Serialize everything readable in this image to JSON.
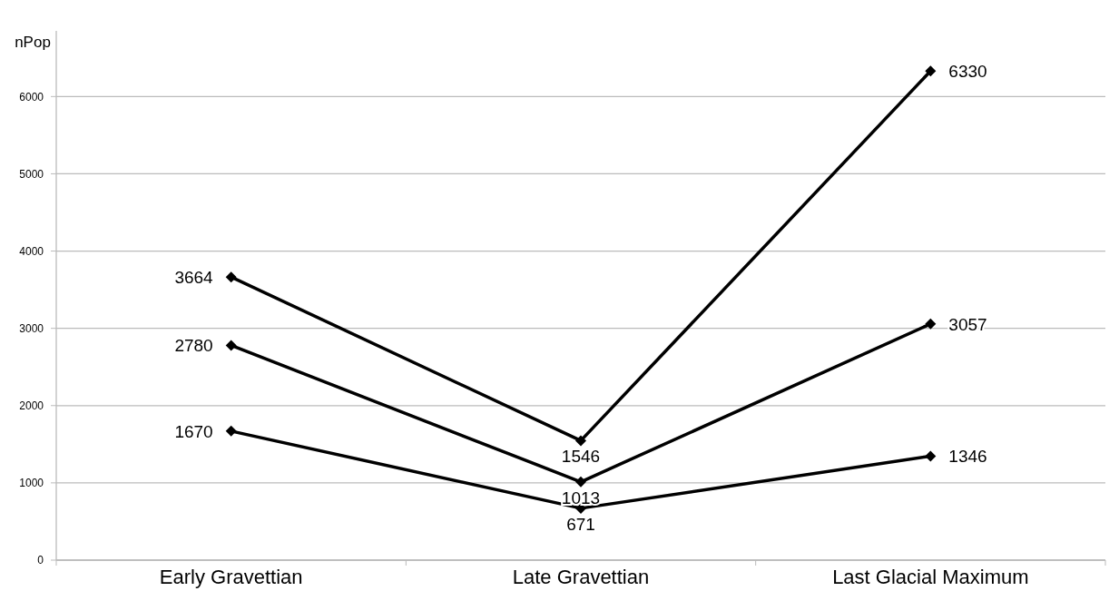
{
  "chart_data": {
    "type": "line",
    "ylabel": "nPop",
    "categories": [
      "Early Gravettian",
      "Late Gravettian",
      "Last Glacial Maximum"
    ],
    "series": [
      {
        "color": "#000000",
        "values": [
          3664,
          1546,
          6330
        ]
      },
      {
        "color": "#000000",
        "values": [
          2780,
          1013,
          3057
        ]
      },
      {
        "color": "#000000",
        "values": [
          1670,
          671,
          1346
        ]
      }
    ],
    "ylim": [
      0,
      6850
    ],
    "yticks": [
      0,
      1000,
      2000,
      3000,
      4000,
      5000,
      6000
    ],
    "grid": "y",
    "marker": "diamond",
    "line_style": "solid",
    "data_labels": true
  }
}
